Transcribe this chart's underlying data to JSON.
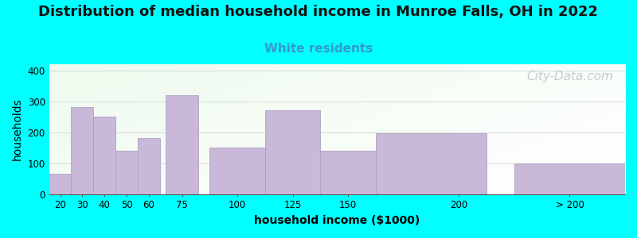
{
  "title": "Distribution of median household income in Munroe Falls, OH in 2022",
  "subtitle": "White residents",
  "xlabel": "household income ($1000)",
  "ylabel": "households",
  "background_color": "#00FFFF",
  "bar_color": "#c9b8d8",
  "bar_edge_color": "#b0a0c8",
  "categories": [
    "20",
    "30",
    "40",
    "50",
    "60",
    "75",
    "100",
    "125",
    "150",
    "200",
    "> 200"
  ],
  "values": [
    65,
    282,
    252,
    140,
    182,
    320,
    152,
    272,
    140,
    197,
    100
  ],
  "bar_lefts": [
    15,
    25,
    35,
    45,
    55,
    67.5,
    87.5,
    112.5,
    137.5,
    162.5,
    225
  ],
  "bar_widths": [
    10,
    10,
    10,
    10,
    10,
    15,
    25,
    25,
    25,
    50,
    50
  ],
  "xtick_positions": [
    20,
    30,
    40,
    50,
    60,
    75,
    100,
    125,
    150,
    200,
    250
  ],
  "xtick_labels": [
    "20",
    "30",
    "40",
    "50",
    "60",
    "75",
    "100",
    "125",
    "150",
    "200",
    "> 200"
  ],
  "xlim": [
    15,
    275
  ],
  "ylim": [
    0,
    420
  ],
  "yticks": [
    0,
    100,
    200,
    300,
    400
  ],
  "title_fontsize": 13,
  "subtitle_fontsize": 11,
  "subtitle_color": "#3399cc",
  "axis_label_fontsize": 10,
  "tick_fontsize": 8.5,
  "watermark_text": "City-Data.com",
  "watermark_color": "#b8c4cc",
  "watermark_fontsize": 11
}
